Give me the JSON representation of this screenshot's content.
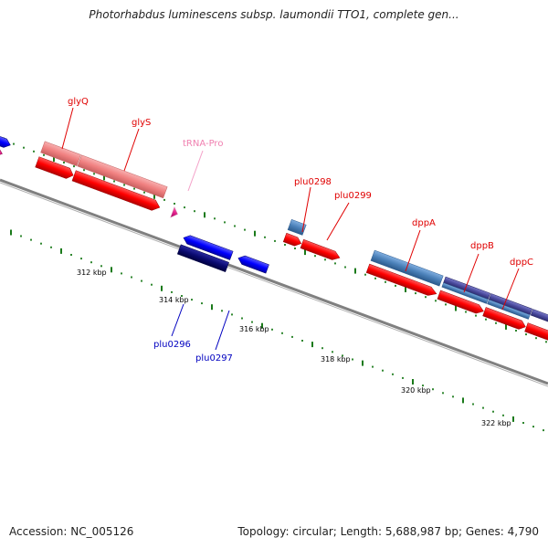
{
  "title": "Photorhabdus luminescens subsp. laumondii TTO1, complete gen...",
  "footer": {
    "accession": "Accession: NC_005126",
    "summary": "Topology: circular; Length: 5,688,987 bp; Genes: 4,790"
  },
  "ruler_labels": [
    "312 kbp",
    "314 kbp",
    "316 kbp",
    "318 kbp",
    "320 kbp",
    "322 kbp"
  ],
  "gene_labels": [
    {
      "text": "glyQ",
      "color": "#e00000"
    },
    {
      "text": "glyS",
      "color": "#e00000"
    },
    {
      "text": "tRNA-Pro",
      "color": "#f080b0"
    },
    {
      "text": "plu0298",
      "color": "#e00000"
    },
    {
      "text": "plu0299",
      "color": "#e00000"
    },
    {
      "text": "dppA",
      "color": "#e00000"
    },
    {
      "text": "dppB",
      "color": "#e00000"
    },
    {
      "text": "dppC",
      "color": "#e00000"
    },
    {
      "text": "plu0296",
      "color": "#0000c0"
    },
    {
      "text": "plu0297",
      "color": "#0000c0"
    }
  ],
  "colors": {
    "backbone": "#808080",
    "tick_major": "#1a7a1a",
    "forward_cds": "#ff0000",
    "reverse_cds": "#0000ff",
    "rrna_trna": "#f08080",
    "cog_blue": "#4a80b8",
    "cog_purple": "#4b4b9e",
    "cog_navy": "#0a0a70",
    "trna_pink": "#f4a0c8",
    "magenta_cds": "#e0208a"
  }
}
